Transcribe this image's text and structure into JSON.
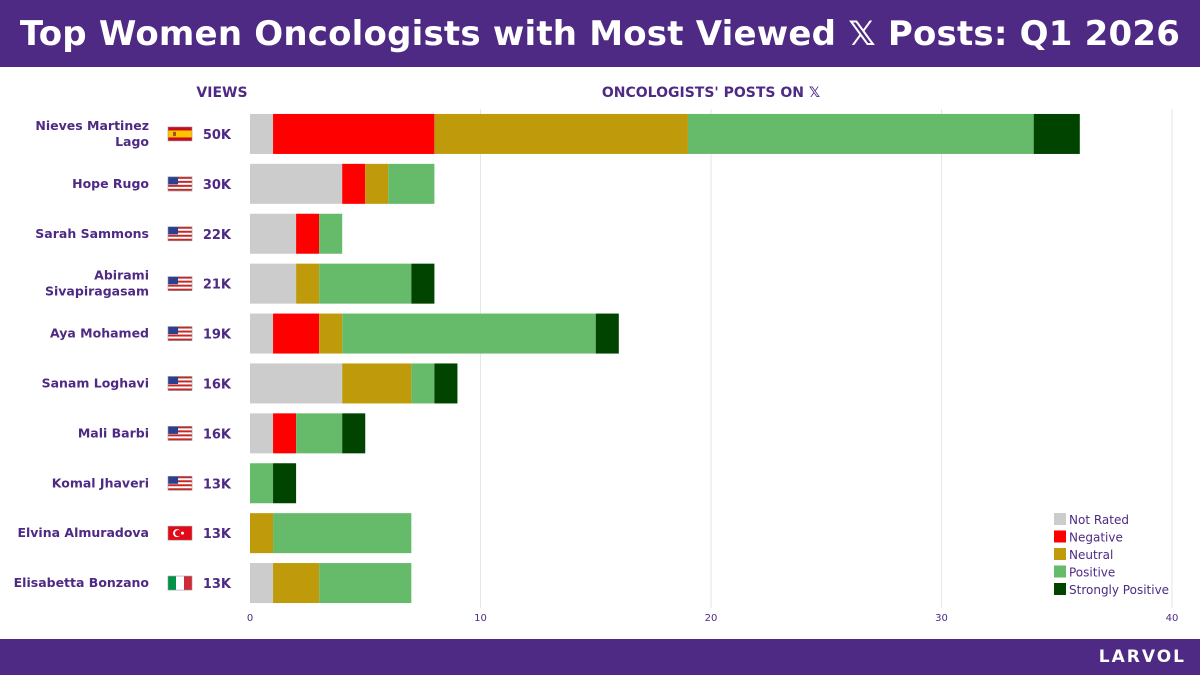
{
  "header": {
    "title": "Top Women Oncologists with Most Viewed 𝕏 Posts: Q1 2026"
  },
  "footer": {
    "brand": "LARVOL"
  },
  "colors": {
    "header_bg": "#4e2a84",
    "label_text": "#4e2a84"
  },
  "chart_data": {
    "type": "bar",
    "orientation": "horizontal",
    "stacked": true,
    "title": "ONCOLOGISTS' POSTS ON 𝕏",
    "views_header": "VIEWS",
    "categories": [
      "Nieves Martinez Lago",
      "Hope Rugo",
      "Sarah Sammons",
      "Abirami Sivapiragasam",
      "Aya Mohamed",
      "Sanam Loghavi",
      "Mali Barbi",
      "Komal Jhaveri",
      "Elvina Almuradova",
      "Elisabetta Bonzano"
    ],
    "category_lines": [
      [
        "Nieves Martinez",
        "Lago"
      ],
      [
        "Hope Rugo"
      ],
      [
        "Sarah Sammons"
      ],
      [
        "Abirami",
        "Sivapiragasam"
      ],
      [
        "Aya Mohamed"
      ],
      [
        "Sanam Loghavi"
      ],
      [
        "Mali Barbi"
      ],
      [
        "Komal Jhaveri"
      ],
      [
        "Elvina Almuradova"
      ],
      [
        "Elisabetta Bonzano"
      ]
    ],
    "flags": [
      "spain",
      "usa",
      "usa",
      "usa",
      "usa",
      "usa",
      "usa",
      "usa",
      "turkey",
      "italy"
    ],
    "views": [
      "50K",
      "30K",
      "22K",
      "21K",
      "19K",
      "16K",
      "16K",
      "13K",
      "13K",
      "13K"
    ],
    "series": [
      {
        "name": "Not Rated",
        "color": "#cccccc",
        "values": [
          1,
          4,
          2,
          2,
          1,
          4,
          1,
          0,
          0,
          1
        ]
      },
      {
        "name": "Negative",
        "color": "#ff0000",
        "values": [
          7,
          1,
          1,
          0,
          2,
          0,
          1,
          0,
          0,
          0
        ]
      },
      {
        "name": "Neutral",
        "color": "#bf9b0b",
        "values": [
          11,
          1,
          0,
          1,
          1,
          3,
          0,
          0,
          1,
          2
        ]
      },
      {
        "name": "Positive",
        "color": "#66bb6a",
        "values": [
          15,
          2,
          1,
          4,
          11,
          1,
          2,
          1,
          6,
          4
        ]
      },
      {
        "name": "Strongly Positive",
        "color": "#004400",
        "values": [
          2,
          0,
          0,
          1,
          1,
          1,
          1,
          1,
          0,
          0
        ]
      }
    ],
    "xlim": [
      0,
      40
    ],
    "xticks": [
      0,
      10,
      20,
      30,
      40
    ],
    "grid": true,
    "legend_position": "bottom-right"
  }
}
